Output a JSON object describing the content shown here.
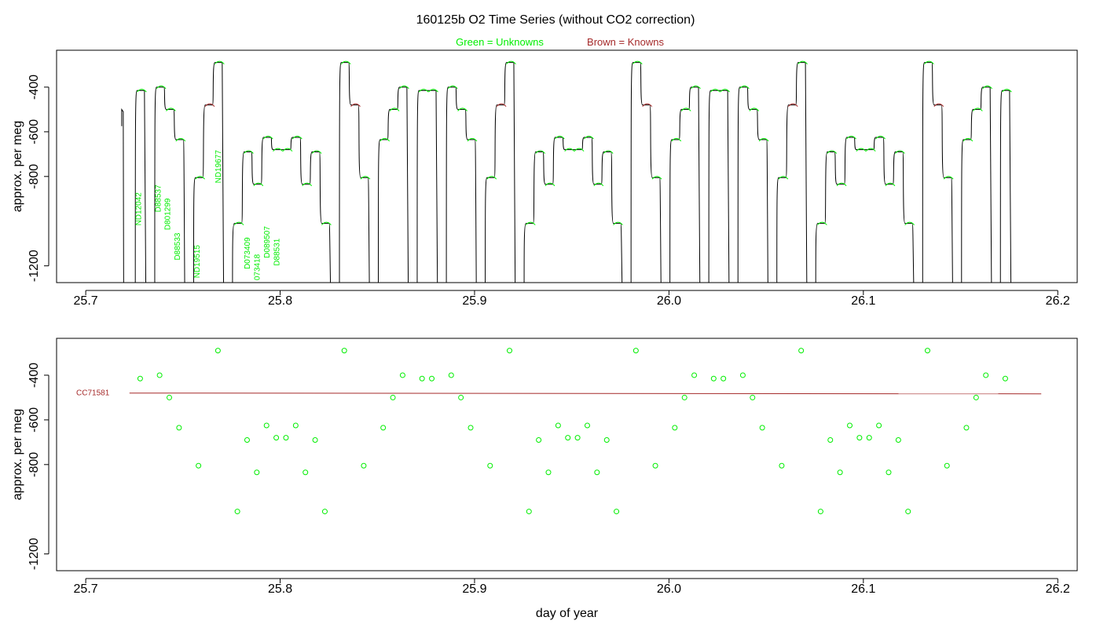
{
  "title": "160125b   O2 Time Series (without CO2 correction)",
  "legend": {
    "unknowns": "Green = Unknowns",
    "knowns": "Brown = Knowns",
    "unknown_color": "#00ee00",
    "known_color": "#a52a2a",
    "trace_color": "#000000"
  },
  "chart_data": [
    {
      "type": "line",
      "name": "time-series",
      "xlabel": "",
      "ylabel": "approx. per meg",
      "xlim": [
        25.685,
        26.21
      ],
      "ylim": [
        -1275,
        -235
      ],
      "y_inverted": true,
      "x_ticks": [
        "25.7",
        "25.8",
        "25.9",
        "26.0",
        "26.1",
        "26.2"
      ],
      "y_ticks": [
        "-400",
        "-600",
        "-800",
        "-1200"
      ],
      "sample_labels": [
        {
          "text": "ND12042",
          "x": 25.7285,
          "y": -1020
        },
        {
          "text": "D88537",
          "x": 25.7385,
          "y": -960
        },
        {
          "text": "D801299",
          "x": 25.7435,
          "y": -1040
        },
        {
          "text": "D88533",
          "x": 25.7485,
          "y": -1175
        },
        {
          "text": "ND19515",
          "x": 25.7585,
          "y": -1255
        },
        {
          "text": "ND19677",
          "x": 25.7695,
          "y": -830
        },
        {
          "text": "D073409",
          "x": 25.7845,
          "y": -1215
        },
        {
          "text": "073418",
          "x": 25.7895,
          "y": -1265
        },
        {
          "text": "D089507",
          "x": 25.7945,
          "y": -1165
        },
        {
          "text": "D88531",
          "x": 25.7995,
          "y": -1200
        }
      ],
      "levels": [
        {
          "start": 25.7255,
          "end": 25.7305,
          "y": -415
        },
        {
          "start": 25.7355,
          "end": 25.7405,
          "y": -400
        },
        {
          "start": 25.7405,
          "end": 25.7455,
          "y": -500
        },
        {
          "start": 25.7455,
          "end": 25.7505,
          "y": -635
        },
        {
          "start": 25.7555,
          "end": 25.7605,
          "y": -805
        },
        {
          "start": 25.7605,
          "end": 25.7655,
          "y": -480
        },
        {
          "start": 25.7655,
          "end": 25.7705,
          "y": -290
        },
        {
          "start": 25.7755,
          "end": 25.7805,
          "y": -1010
        },
        {
          "start": 25.7805,
          "end": 25.7855,
          "y": -690
        },
        {
          "start": 25.7855,
          "end": 25.7905,
          "y": -835
        },
        {
          "start": 25.7905,
          "end": 25.7955,
          "y": -625
        },
        {
          "start": 25.7955,
          "end": 25.8005,
          "y": -680
        },
        {
          "start": 25.8005,
          "end": 25.8055,
          "y": -680
        },
        {
          "start": 25.8055,
          "end": 25.8105,
          "y": -625
        },
        {
          "start": 25.8105,
          "end": 25.8155,
          "y": -835
        },
        {
          "start": 25.8155,
          "end": 25.8205,
          "y": -690
        },
        {
          "start": 25.8205,
          "end": 25.8255,
          "y": -1010
        },
        {
          "start": 25.8305,
          "end": 25.8355,
          "y": -290
        },
        {
          "start": 25.8355,
          "end": 25.8405,
          "y": -480
        },
        {
          "start": 25.8405,
          "end": 25.8455,
          "y": -805
        },
        {
          "start": 25.8505,
          "end": 25.8555,
          "y": -635
        },
        {
          "start": 25.8555,
          "end": 25.8605,
          "y": -500
        },
        {
          "start": 25.8605,
          "end": 25.8655,
          "y": -400
        },
        {
          "start": 25.8705,
          "end": 25.8755,
          "y": -415
        },
        {
          "start": 25.8755,
          "end": 25.8805,
          "y": -415
        },
        {
          "start": 25.8855,
          "end": 25.8905,
          "y": -400
        },
        {
          "start": 25.8905,
          "end": 25.8955,
          "y": -500
        },
        {
          "start": 25.8955,
          "end": 25.9005,
          "y": -635
        },
        {
          "start": 25.9055,
          "end": 25.9105,
          "y": -805
        },
        {
          "start": 25.9105,
          "end": 25.9155,
          "y": -480
        },
        {
          "start": 25.9155,
          "end": 25.9205,
          "y": -290
        },
        {
          "start": 25.9255,
          "end": 25.9305,
          "y": -1010
        },
        {
          "start": 25.9305,
          "end": 25.9355,
          "y": -690
        },
        {
          "start": 25.9355,
          "end": 25.9405,
          "y": -835
        },
        {
          "start": 25.9405,
          "end": 25.9455,
          "y": -625
        },
        {
          "start": 25.9455,
          "end": 25.9505,
          "y": -680
        },
        {
          "start": 25.9505,
          "end": 25.9555,
          "y": -680
        },
        {
          "start": 25.9555,
          "end": 25.9605,
          "y": -625
        },
        {
          "start": 25.9605,
          "end": 25.9655,
          "y": -835
        },
        {
          "start": 25.9655,
          "end": 25.9705,
          "y": -690
        },
        {
          "start": 25.9705,
          "end": 25.9755,
          "y": -1010
        },
        {
          "start": 25.9805,
          "end": 25.9855,
          "y": -290
        },
        {
          "start": 25.9855,
          "end": 25.9905,
          "y": -480
        },
        {
          "start": 25.9905,
          "end": 25.9955,
          "y": -805
        },
        {
          "start": 26.0005,
          "end": 26.0055,
          "y": -635
        },
        {
          "start": 26.0055,
          "end": 26.0105,
          "y": -500
        },
        {
          "start": 26.0105,
          "end": 26.0155,
          "y": -400
        },
        {
          "start": 26.0205,
          "end": 26.0255,
          "y": -415
        },
        {
          "start": 26.0255,
          "end": 26.0305,
          "y": -415
        },
        {
          "start": 26.0355,
          "end": 26.0405,
          "y": -400
        },
        {
          "start": 26.0405,
          "end": 26.0455,
          "y": -500
        },
        {
          "start": 26.0455,
          "end": 26.0505,
          "y": -635
        },
        {
          "start": 26.0555,
          "end": 26.0605,
          "y": -805
        },
        {
          "start": 26.0605,
          "end": 26.0655,
          "y": -480
        },
        {
          "start": 26.0655,
          "end": 26.0705,
          "y": -290
        },
        {
          "start": 26.0755,
          "end": 26.0805,
          "y": -1010
        },
        {
          "start": 26.0805,
          "end": 26.0855,
          "y": -690
        },
        {
          "start": 26.0855,
          "end": 26.0905,
          "y": -835
        },
        {
          "start": 26.0905,
          "end": 26.0955,
          "y": -625
        },
        {
          "start": 26.0955,
          "end": 26.1005,
          "y": -680
        },
        {
          "start": 26.1005,
          "end": 26.1055,
          "y": -680
        },
        {
          "start": 26.1055,
          "end": 26.1105,
          "y": -625
        },
        {
          "start": 26.1105,
          "end": 26.1155,
          "y": -835
        },
        {
          "start": 26.1155,
          "end": 26.1205,
          "y": -690
        },
        {
          "start": 26.1205,
          "end": 26.1255,
          "y": -1010
        },
        {
          "start": 26.1305,
          "end": 26.1355,
          "y": -290
        },
        {
          "start": 26.1355,
          "end": 26.1405,
          "y": -480
        },
        {
          "start": 26.1405,
          "end": 26.1455,
          "y": -805
        },
        {
          "start": 26.1505,
          "end": 26.1555,
          "y": -635
        },
        {
          "start": 26.1555,
          "end": 26.1605,
          "y": -500
        },
        {
          "start": 26.1605,
          "end": 26.1655,
          "y": -400
        },
        {
          "start": 26.1705,
          "end": 26.1755,
          "y": -415
        }
      ]
    },
    {
      "type": "scatter",
      "name": "sample-means",
      "xlabel": "day of year",
      "ylabel": "approx. per meg",
      "xlim": [
        25.685,
        26.21
      ],
      "ylim": [
        -1275,
        -235
      ],
      "y_inverted": true,
      "x_ticks": [
        "25.7",
        "25.8",
        "25.9",
        "26.0",
        "26.1",
        "26.2"
      ],
      "y_ticks": [
        "-400",
        "-600",
        "-800",
        "-1200"
      ],
      "known_line": {
        "label": "CC71581",
        "x": [
          25.7225,
          26.1915
        ],
        "y": [
          -480,
          -480
        ]
      },
      "points": [
        {
          "x": 25.728,
          "y": -415
        },
        {
          "x": 25.738,
          "y": -400
        },
        {
          "x": 25.743,
          "y": -500
        },
        {
          "x": 25.748,
          "y": -635
        },
        {
          "x": 25.758,
          "y": -805
        },
        {
          "x": 25.768,
          "y": -290
        },
        {
          "x": 25.778,
          "y": -1010
        },
        {
          "x": 25.783,
          "y": -690
        },
        {
          "x": 25.788,
          "y": -835
        },
        {
          "x": 25.793,
          "y": -625
        },
        {
          "x": 25.798,
          "y": -680
        },
        {
          "x": 25.803,
          "y": -680
        },
        {
          "x": 25.808,
          "y": -625
        },
        {
          "x": 25.813,
          "y": -835
        },
        {
          "x": 25.818,
          "y": -690
        },
        {
          "x": 25.823,
          "y": -1010
        },
        {
          "x": 25.833,
          "y": -290
        },
        {
          "x": 25.843,
          "y": -805
        },
        {
          "x": 25.853,
          "y": -635
        },
        {
          "x": 25.858,
          "y": -500
        },
        {
          "x": 25.863,
          "y": -400
        },
        {
          "x": 25.873,
          "y": -415
        },
        {
          "x": 25.878,
          "y": -415
        },
        {
          "x": 25.888,
          "y": -400
        },
        {
          "x": 25.893,
          "y": -500
        },
        {
          "x": 25.898,
          "y": -635
        },
        {
          "x": 25.908,
          "y": -805
        },
        {
          "x": 25.918,
          "y": -290
        },
        {
          "x": 25.928,
          "y": -1010
        },
        {
          "x": 25.933,
          "y": -690
        },
        {
          "x": 25.938,
          "y": -835
        },
        {
          "x": 25.943,
          "y": -625
        },
        {
          "x": 25.948,
          "y": -680
        },
        {
          "x": 25.953,
          "y": -680
        },
        {
          "x": 25.958,
          "y": -625
        },
        {
          "x": 25.963,
          "y": -835
        },
        {
          "x": 25.968,
          "y": -690
        },
        {
          "x": 25.973,
          "y": -1010
        },
        {
          "x": 25.983,
          "y": -290
        },
        {
          "x": 25.993,
          "y": -805
        },
        {
          "x": 26.003,
          "y": -635
        },
        {
          "x": 26.008,
          "y": -500
        },
        {
          "x": 26.013,
          "y": -400
        },
        {
          "x": 26.023,
          "y": -415
        },
        {
          "x": 26.028,
          "y": -415
        },
        {
          "x": 26.038,
          "y": -400
        },
        {
          "x": 26.043,
          "y": -500
        },
        {
          "x": 26.048,
          "y": -635
        },
        {
          "x": 26.058,
          "y": -805
        },
        {
          "x": 26.068,
          "y": -290
        },
        {
          "x": 26.078,
          "y": -1010
        },
        {
          "x": 26.083,
          "y": -690
        },
        {
          "x": 26.088,
          "y": -835
        },
        {
          "x": 26.093,
          "y": -625
        },
        {
          "x": 26.098,
          "y": -680
        },
        {
          "x": 26.103,
          "y": -680
        },
        {
          "x": 26.108,
          "y": -625
        },
        {
          "x": 26.113,
          "y": -835
        },
        {
          "x": 26.118,
          "y": -690
        },
        {
          "x": 26.123,
          "y": -1010
        },
        {
          "x": 26.133,
          "y": -290
        },
        {
          "x": 26.143,
          "y": -805
        },
        {
          "x": 26.153,
          "y": -635
        },
        {
          "x": 26.158,
          "y": -500
        },
        {
          "x": 26.163,
          "y": -400
        },
        {
          "x": 26.173,
          "y": -415
        }
      ]
    }
  ]
}
